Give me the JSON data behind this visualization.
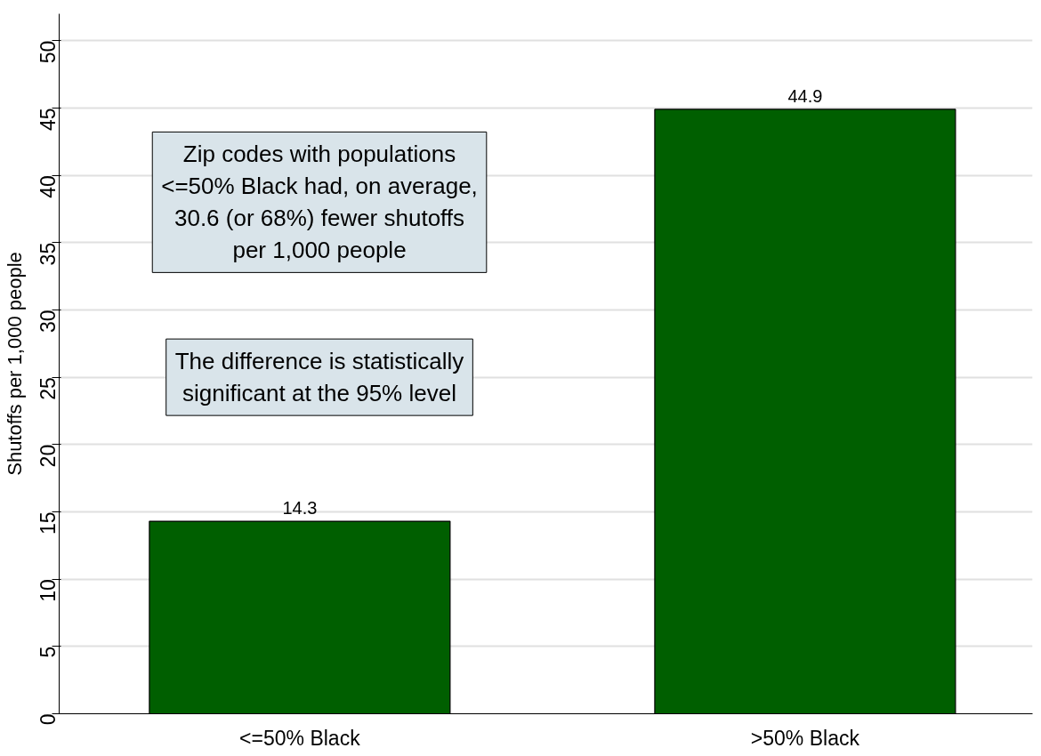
{
  "chart_data": {
    "type": "bar",
    "ylabel": "Shutoffs per 1,000 people",
    "categories": [
      "<=50% Black",
      ">50% Black"
    ],
    "values": [
      14.3,
      44.9
    ],
    "color": "#005f00",
    "ylim": [
      0,
      52
    ],
    "yticks": [
      0,
      5,
      10,
      15,
      20,
      25,
      30,
      35,
      40,
      45,
      50
    ],
    "grid": "y",
    "data_labels": true,
    "annotations": [
      "Zip codes with populations\n<=50% Black had, on average,\n30.6 (or 68%) fewer shutoffs\nper 1,000 people",
      "The difference is statistically\nsignificant at the 95% level"
    ]
  }
}
